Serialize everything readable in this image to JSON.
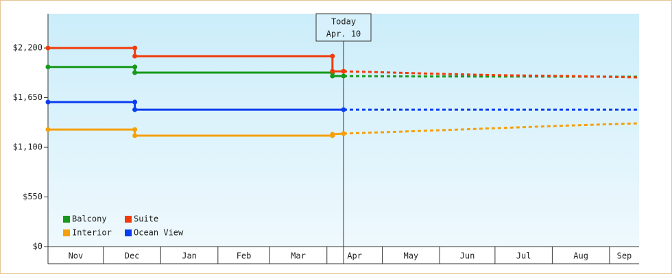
{
  "chart_data": {
    "type": "step-line",
    "annotation": {
      "title": "Today",
      "date": "Apr. 10",
      "x": 160
    },
    "xlim": [
      0,
      320
    ],
    "xticks": [
      {
        "value": 0,
        "label": "Nov"
      },
      {
        "value": 30,
        "label": "Dec"
      },
      {
        "value": 61,
        "label": "Jan"
      },
      {
        "value": 92,
        "label": "Feb"
      },
      {
        "value": 120,
        "label": "Mar"
      },
      {
        "value": 151,
        "label": "Apr"
      },
      {
        "value": 181,
        "label": "May"
      },
      {
        "value": 212,
        "label": "Jun"
      },
      {
        "value": 242,
        "label": "Jul"
      },
      {
        "value": 273,
        "label": "Aug"
      },
      {
        "value": 304,
        "label": "Sep"
      }
    ],
    "ylim": [
      0,
      2580
    ],
    "yticks": [
      {
        "value": 0,
        "label": "$0"
      },
      {
        "value": 550,
        "label": "$550"
      },
      {
        "value": 1100,
        "label": "$1,100"
      },
      {
        "value": 1650,
        "label": "$1,650"
      },
      {
        "value": 2200,
        "label": "$2,200"
      }
    ],
    "legend": "bottom-left",
    "series": [
      {
        "name": "Balcony",
        "color": "#16991a",
        "x": [
          0,
          47,
          47,
          154,
          154,
          160
        ],
        "values": [
          1990,
          1990,
          1927,
          1927,
          1889,
          1889
        ],
        "forecast_x": [
          160,
          200,
          240,
          280,
          320
        ],
        "forecast": [
          1889,
          1885,
          1884,
          1883,
          1882
        ]
      },
      {
        "name": "Suite",
        "color": "#f03c0a",
        "x": [
          0,
          47,
          47,
          154,
          154,
          160
        ],
        "values": [
          2200,
          2200,
          2110,
          2110,
          1942,
          1942
        ],
        "forecast_x": [
          160,
          200,
          240,
          280,
          320
        ],
        "forecast": [
          1942,
          1920,
          1900,
          1890,
          1874
        ]
      },
      {
        "name": "Interior",
        "color": "#f5a00a",
        "x": [
          0,
          47,
          47,
          154,
          154,
          160
        ],
        "values": [
          1297,
          1297,
          1229,
          1229,
          1244,
          1252
        ],
        "forecast_x": [
          160,
          200,
          240,
          280,
          320
        ],
        "forecast": [
          1252,
          1280,
          1310,
          1340,
          1366
        ]
      },
      {
        "name": "Ocean View",
        "color": "#0a3cf0",
        "x": [
          0,
          47,
          47,
          160
        ],
        "values": [
          1601,
          1601,
          1517,
          1517
        ],
        "forecast_x": [
          160,
          200,
          240,
          280,
          320
        ],
        "forecast": [
          1517,
          1517,
          1517,
          1517,
          1517
        ]
      }
    ]
  }
}
